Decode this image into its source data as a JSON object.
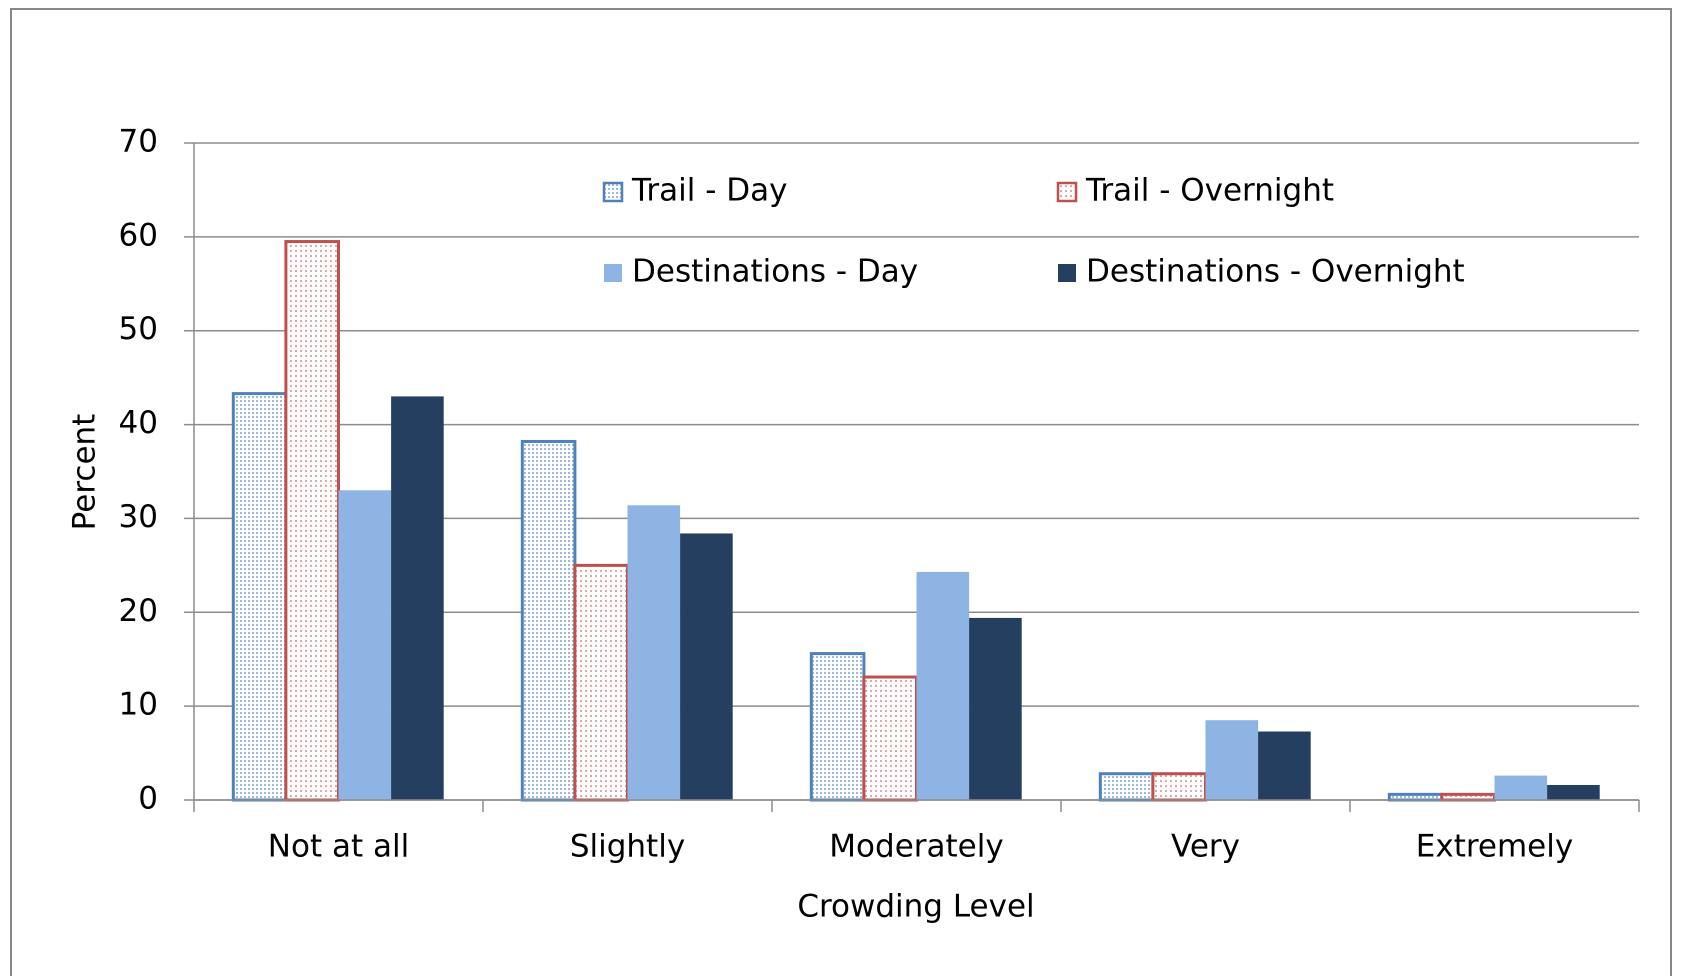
{
  "chart_data": {
    "type": "bar",
    "categories": [
      "Not at all",
      "Slightly",
      "Moderately",
      "Very",
      "Extremely"
    ],
    "series": [
      {
        "name": "Trail - Day",
        "color": "#4f81bd",
        "pattern": "dots",
        "values": [
          43.3,
          38.2,
          15.6,
          2.8,
          0.6
        ]
      },
      {
        "name": "Trail - Overnight",
        "color": "#c0504d",
        "pattern": "dots",
        "values": [
          59.5,
          25,
          13.1,
          2.8,
          0.6
        ]
      },
      {
        "name": "Destinations - Day",
        "color": "#8eb4e3",
        "values": [
          33,
          31.4,
          24.3,
          8.5,
          2.6
        ]
      },
      {
        "name": "Destinations - Overnight",
        "color": "#243f60",
        "values": [
          43,
          28.4,
          19.4,
          7.3,
          1.6
        ]
      }
    ],
    "ylabel": "Percent",
    "xlabel": "Crowding Level",
    "ylim": [
      0,
      70
    ],
    "yticks": [
      0,
      10,
      20,
      30,
      40,
      50,
      60,
      70
    ],
    "grid": true
  }
}
